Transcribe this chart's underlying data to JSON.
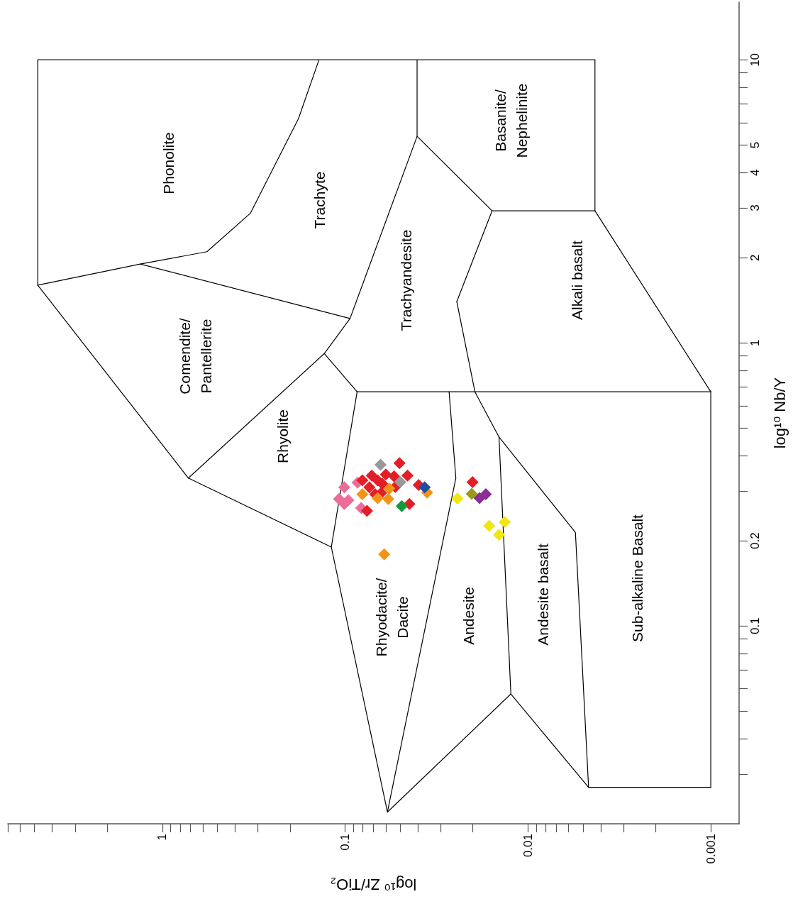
{
  "chart_data": {
    "type": "scatter",
    "xlabel": "log¹⁰ Zr/TiO₂",
    "ylabel": "log¹⁰ Nb/Y",
    "log": "xy",
    "grid": false,
    "marker": "diamond",
    "xlim": [
      7,
      0.0007
    ],
    "ylim": [
      0.02,
      16
    ],
    "yticks": [
      {
        "value": 0.03,
        "label": null
      },
      {
        "value": 0.04,
        "label": null
      },
      {
        "value": 0.05,
        "label": null
      },
      {
        "value": 0.06,
        "label": null
      },
      {
        "value": 0.07,
        "label": null
      },
      {
        "value": 0.08,
        "label": null
      },
      {
        "value": 0.09,
        "label": null
      },
      0.1,
      0.2,
      {
        "value": 0.3,
        "label": null
      },
      {
        "value": 0.4,
        "label": null
      },
      {
        "value": 0.5,
        "label": null
      },
      {
        "value": 0.6,
        "label": null
      },
      {
        "value": 0.7,
        "label": null
      },
      {
        "value": 0.8,
        "label": null
      },
      {
        "value": 0.9,
        "label": null
      },
      1,
      2,
      3,
      4,
      5,
      {
        "value": 6,
        "label": null
      },
      {
        "value": 7,
        "label": null
      },
      {
        "value": 8,
        "label": null
      },
      {
        "value": 9,
        "label": null
      },
      10
    ],
    "xticks": [
      {
        "value": 0.002,
        "label": null
      },
      {
        "value": 0.003,
        "label": null
      },
      {
        "value": 0.004,
        "label": null
      },
      {
        "value": 0.005,
        "label": null
      },
      {
        "value": 0.006,
        "label": null
      },
      {
        "value": 0.007,
        "label": null
      },
      {
        "value": 0.008,
        "label": null
      },
      {
        "value": 0.009,
        "label": null
      },
      0.001,
      0.01,
      {
        "value": 0.02,
        "label": null
      },
      {
        "value": 0.03,
        "label": null
      },
      {
        "value": 0.04,
        "label": null
      },
      {
        "value": 0.05,
        "label": null
      },
      {
        "value": 0.06,
        "label": null
      },
      {
        "value": 0.07,
        "label": null
      },
      {
        "value": 0.08,
        "label": null
      },
      {
        "value": 0.09,
        "label": null
      },
      0.1,
      {
        "value": 0.2,
        "label": null
      },
      {
        "value": 0.3,
        "label": null
      },
      {
        "value": 0.4,
        "label": null
      },
      {
        "value": 0.5,
        "label": null
      },
      {
        "value": 0.6,
        "label": null
      },
      {
        "value": 0.7,
        "label": null
      },
      {
        "value": 0.8,
        "label": null
      },
      {
        "value": 0.9,
        "label": null
      },
      1,
      {
        "value": 2,
        "label": null
      },
      {
        "value": 3,
        "label": null
      },
      {
        "value": 4,
        "label": null
      },
      {
        "value": 5,
        "label": null
      },
      {
        "value": 6,
        "label": null
      },
      {
        "value": 7,
        "label": null
      }
    ],
    "annotations": [
      "Phonolite",
      "Trachyte",
      "Basanite/\nNephelinite",
      "Trachyandesite",
      "Alkali basalt",
      "Comendite/\nPantellerite",
      "Rhyolite",
      "Rhyodacite/\nDacite",
      "Andesite",
      "Andesite basalt",
      "Sub-alkaline Basalt"
    ],
    "series": [
      {
        "type": "line",
        "marker": "none",
        "line_style": "solid",
        "color": "#000000",
        "values": [
          1.6,
          10
        ],
        "x": [
          4.8,
          4.8
        ]
      },
      {
        "type": "line",
        "marker": "none",
        "line_style": "solid",
        "color": "#000000",
        "values": [
          10,
          10
        ],
        "x": [
          4.8,
          0.0043
        ]
      },
      {
        "type": "line",
        "marker": "none",
        "line_style": "solid",
        "color": "#000000",
        "values": [
          10,
          2.93
        ],
        "x": [
          0.0043,
          0.0043
        ]
      },
      {
        "type": "line",
        "marker": "none",
        "line_style": "solid",
        "color": "#000000",
        "values": [
          2.93,
          0.672
        ],
        "x": [
          0.0043,
          0.001
        ]
      },
      {
        "type": "line",
        "marker": "none",
        "line_style": "solid",
        "color": "#000000",
        "values": [
          0.672,
          0.0269
        ],
        "x": [
          0.001,
          0.001
        ]
      },
      {
        "type": "line",
        "marker": "none",
        "line_style": "solid",
        "color": "#000000",
        "values": [
          0.0269,
          0.0269,
          0.0575,
          0.022,
          0.19,
          0.333,
          1.6
        ],
        "x": [
          0.001,
          0.00466,
          0.0124,
          0.0587,
          0.119,
          0.72,
          4.8
        ]
      },
      {
        "type": "line",
        "marker": "none",
        "line_style": "solid",
        "color": "#000000",
        "values": [
          10,
          6.2,
          2.87,
          2.1,
          1.9,
          1.6
        ],
        "x": [
          0.139,
          0.18,
          0.33,
          0.57,
          1.32,
          4.8
        ]
      },
      {
        "type": "line",
        "marker": "none",
        "line_style": "solid",
        "color": "#000000",
        "values": [
          1.9,
          1.22,
          5.37,
          10
        ],
        "x": [
          1.32,
          0.094,
          0.0404,
          0.0404
        ]
      },
      {
        "type": "line",
        "marker": "none",
        "line_style": "solid",
        "color": "#000000",
        "values": [
          1.22,
          0.917,
          0.333
        ],
        "x": [
          0.094,
          0.13,
          0.72
        ]
      },
      {
        "type": "line",
        "marker": "none",
        "line_style": "solid",
        "color": "#000000",
        "values": [
          0.917,
          0.672
        ],
        "x": [
          0.13,
          0.086
        ]
      },
      {
        "type": "line",
        "marker": "none",
        "line_style": "solid",
        "color": "#000000",
        "values": [
          0.672,
          0.19
        ],
        "x": [
          0.086,
          0.119
        ]
      },
      {
        "type": "line",
        "marker": "none",
        "line_style": "solid",
        "color": "#000000",
        "values": [
          0.672,
          0.672
        ],
        "x": [
          0.086,
          0.001
        ]
      },
      {
        "type": "line",
        "marker": "none",
        "line_style": "solid",
        "color": "#000000",
        "values": [
          5.37,
          2.93,
          2.93
        ],
        "x": [
          0.0404,
          0.0157,
          0.0043
        ]
      },
      {
        "type": "line",
        "marker": "none",
        "line_style": "solid",
        "color": "#000000",
        "values": [
          2.93,
          1.4
        ],
        "x": [
          0.0157,
          0.0245
        ]
      },
      {
        "type": "line",
        "marker": "none",
        "line_style": "solid",
        "color": "#000000",
        "values": [
          1.4,
          0.672,
          0.465,
          0.214,
          0.0269
        ],
        "x": [
          0.0245,
          0.0195,
          0.0144,
          0.0055,
          0.00466
        ]
      },
      {
        "type": "line",
        "marker": "none",
        "line_style": "solid",
        "color": "#000000",
        "values": [
          0.672,
          0.333,
          0.022
        ],
        "x": [
          0.027,
          0.0248,
          0.0587
        ]
      },
      {
        "type": "line",
        "marker": "none",
        "line_style": "solid",
        "color": "#000000",
        "values": [
          0.465,
          0.0575
        ],
        "x": [
          0.0144,
          0.0124
        ]
      },
      {
        "color": "#ee6c9a",
        "values": [
          0.309,
          0.281,
          0.278,
          0.321,
          0.261,
          0.27
        ],
        "x": [
          0.101,
          0.108,
          0.096,
          0.0855,
          0.0817,
          0.101
        ]
      },
      {
        "color": "#e41e26",
        "values": [
          0.376,
          0.34,
          0.338,
          0.34,
          0.327,
          0.327,
          0.318,
          0.309,
          0.292,
          0.295,
          0.31,
          0.315,
          0.27,
          0.255,
          0.322,
          0.343
        ],
        "x": [
          0.0504,
          0.0456,
          0.054,
          0.0715,
          0.0664,
          0.0805,
          0.0626,
          0.0737,
          0.0685,
          0.0635,
          0.0532,
          0.0396,
          0.0445,
          0.0759,
          0.0201,
          0.0599
        ]
      },
      {
        "color": "#f39419",
        "values": [
          0.292,
          0.281,
          0.306,
          0.296,
          0.283,
          0.179
        ],
        "x": [
          0.0805,
          0.0581,
          0.0573,
          0.0356,
          0.0664,
          0.0611
        ]
      },
      {
        "color": "#999999",
        "values": [
          0.371,
          0.322
        ],
        "x": [
          0.064,
          0.0499
        ]
      },
      {
        "color": "#1f4e9c",
        "values": [
          0.309
        ],
        "x": [
          0.0367
        ]
      },
      {
        "color": "#129a3c",
        "values": [
          0.265
        ],
        "x": [
          0.049
        ]
      },
      {
        "color": "#f0e614",
        "values": [
          0.282,
          0.226,
          0.233,
          0.21
        ],
        "x": [
          0.0243,
          0.0163,
          0.0134,
          0.0144
        ]
      },
      {
        "color": "#9a9a20",
        "values": [
          0.293
        ],
        "x": [
          0.0203
        ]
      },
      {
        "color": "#8a2f94",
        "values": [
          0.283,
          0.292
        ],
        "x": [
          0.0184,
          0.017
        ]
      }
    ]
  }
}
